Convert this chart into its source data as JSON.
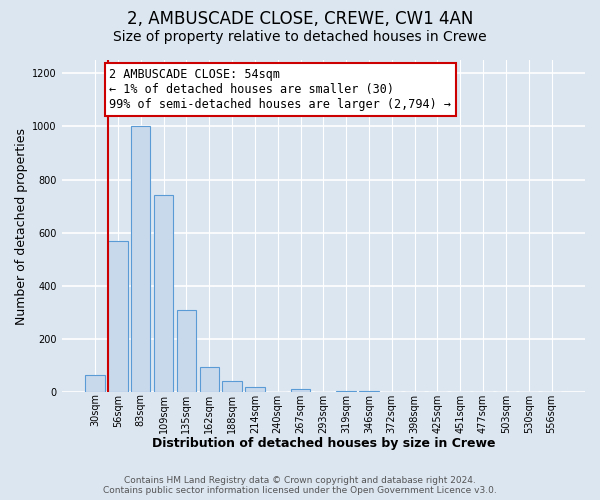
{
  "title": "2, AMBUSCADE CLOSE, CREWE, CW1 4AN",
  "subtitle": "Size of property relative to detached houses in Crewe",
  "xlabel": "Distribution of detached houses by size in Crewe",
  "ylabel": "Number of detached properties",
  "bar_labels": [
    "30sqm",
    "56sqm",
    "83sqm",
    "109sqm",
    "135sqm",
    "162sqm",
    "188sqm",
    "214sqm",
    "240sqm",
    "267sqm",
    "293sqm",
    "319sqm",
    "346sqm",
    "372sqm",
    "398sqm",
    "425sqm",
    "451sqm",
    "477sqm",
    "503sqm",
    "530sqm",
    "556sqm"
  ],
  "bar_values": [
    65,
    570,
    1000,
    740,
    310,
    95,
    40,
    20,
    0,
    10,
    0,
    5,
    5,
    0,
    0,
    0,
    0,
    0,
    0,
    0,
    0
  ],
  "bar_color": "#c8d9ec",
  "bar_edge_color": "#5b9bd5",
  "annotation_text": "2 AMBUSCADE CLOSE: 54sqm\n← 1% of detached houses are smaller (30)\n99% of semi-detached houses are larger (2,794) →",
  "marker_line_color": "#cc0000",
  "ylim": [
    0,
    1250
  ],
  "yticks": [
    0,
    200,
    400,
    600,
    800,
    1000,
    1200
  ],
  "axes_bg_color": "#dce6f1",
  "fig_bg_color": "#dce6f1",
  "footer_text": "Contains HM Land Registry data © Crown copyright and database right 2024.\nContains public sector information licensed under the Open Government Licence v3.0.",
  "title_fontsize": 12,
  "subtitle_fontsize": 10,
  "xlabel_fontsize": 9,
  "ylabel_fontsize": 9,
  "tick_fontsize": 7,
  "annotation_fontsize": 8.5,
  "footer_fontsize": 6.5
}
